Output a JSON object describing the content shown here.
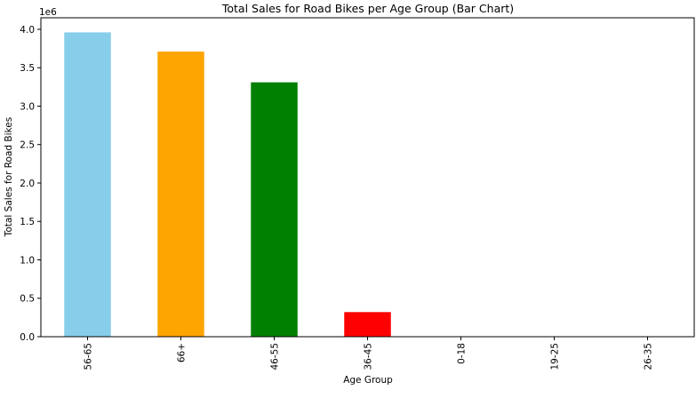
{
  "chart_data": {
    "type": "bar",
    "title": "Total Sales for Road Bikes per Age Group (Bar Chart)",
    "xlabel": "Age Group",
    "ylabel": "Total Sales for Road Bikes",
    "y_offset_label": "1e6",
    "categories": [
      "56-65",
      "66+",
      "46-55",
      "36-45",
      "0-18",
      "19-25",
      "26-35"
    ],
    "values": [
      3960000,
      3710000,
      3310000,
      320000,
      0,
      0,
      0
    ],
    "bar_colors": [
      "#87ceeb",
      "#ffa500",
      "#008000",
      "#ff0000",
      "#87ceeb",
      "#ffa500",
      "#008000"
    ],
    "ylim": [
      0,
      4150000
    ],
    "y_tick_values": [
      0,
      500000,
      1000000,
      1500000,
      2000000,
      2500000,
      3000000,
      3500000,
      4000000
    ],
    "y_tick_labels": [
      "0.0",
      "0.5",
      "1.0",
      "1.5",
      "2.0",
      "2.5",
      "3.0",
      "3.5",
      "4.0"
    ],
    "grid": false,
    "x_tick_rotation": "vertical"
  }
}
